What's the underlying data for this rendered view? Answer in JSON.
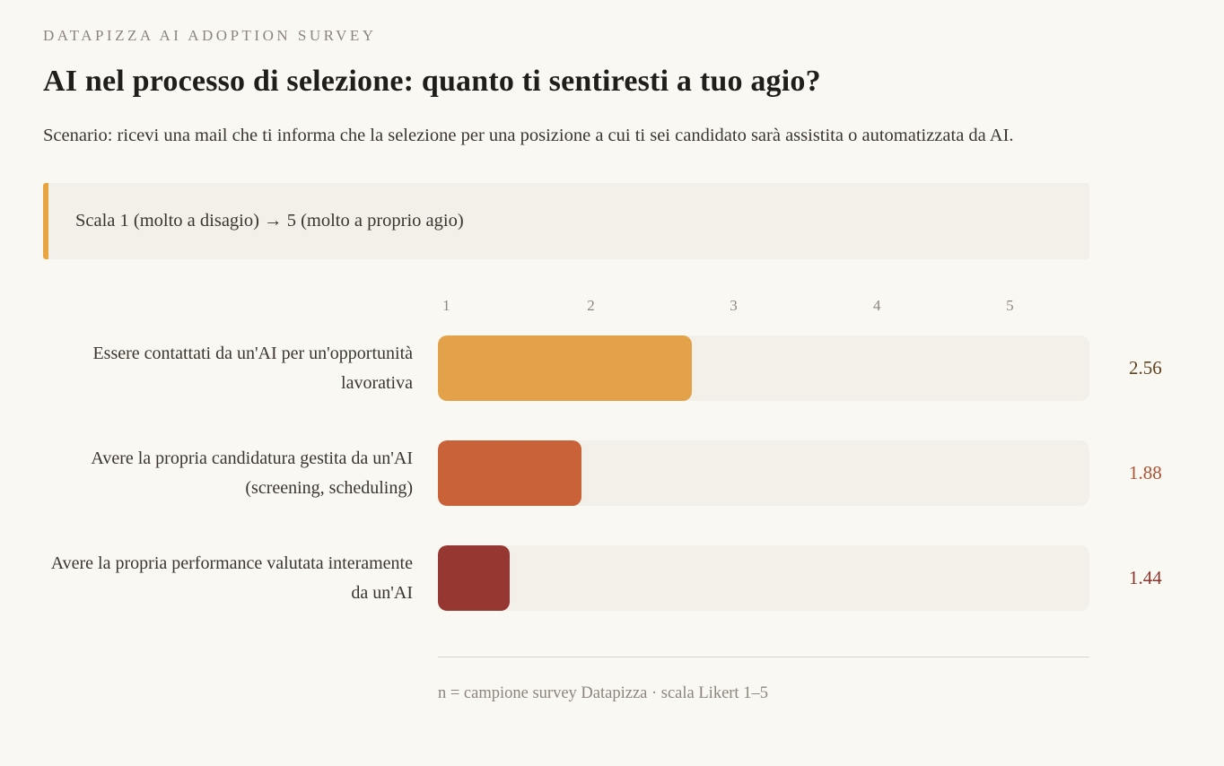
{
  "page": {
    "eyebrow": "DATAPIZZA AI ADOPTION SURVEY",
    "title": "AI nel processo di selezione: quanto ti sentiresti a tuo agio?",
    "subtitle": "Scenario: ricevi una mail che ti informa che la selezione per una posizione a cui ti sei candidato sarà assistita o automatizzata da AI."
  },
  "callout": {
    "text": "Scala 1 (molto a disagio) → 5 (molto a proprio agio)"
  },
  "chart_data": {
    "type": "bar",
    "orientation": "horizontal",
    "title": "AI nel processo di selezione: quanto ti sentiresti a tuo agio?",
    "scale_note": "Scala 1 (molto a disagio) → 5 (molto a proprio agio)",
    "categories": [
      "Essere contattati da un'AI per un'opportunità lavorativa",
      "Avere la propria candidatura gestita da un'AI (screening, scheduling)",
      "Avere la propria performance valutata interamente da un'AI"
    ],
    "values": [
      2.56,
      1.88,
      1.44
    ],
    "value_labels": [
      "2.56",
      "1.88",
      "1.44"
    ],
    "bar_colors": [
      "#e3a24a",
      "#c96239",
      "#963732"
    ],
    "value_colors": [
      "#5f421e",
      "#ad5233",
      "#8a362d"
    ],
    "xlim": [
      1,
      5
    ],
    "x_ticks": [
      "1",
      "2",
      "3",
      "4",
      "5"
    ],
    "grid": false,
    "legend": false,
    "footnote": "n = campione survey Datapizza · scala Likert 1–5"
  },
  "colors": {
    "background": "#faf8f2",
    "track": "#f2f0e9",
    "accent": "#e8a440"
  }
}
